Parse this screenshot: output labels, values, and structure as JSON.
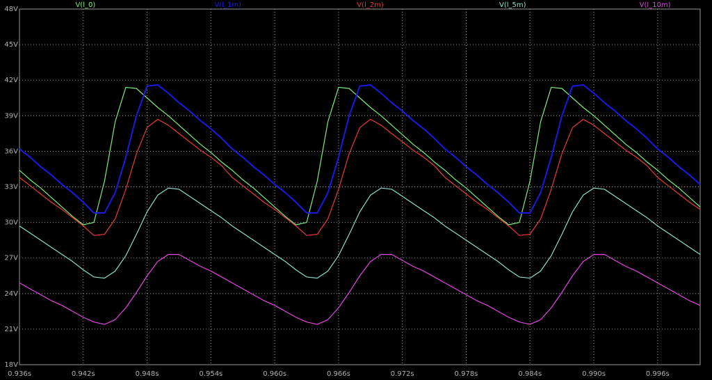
{
  "chart_data": {
    "type": "line",
    "x": [
      0.936,
      0.937,
      0.938,
      0.939,
      0.94,
      0.941,
      0.942,
      0.943,
      0.944,
      0.945,
      0.946,
      0.947,
      0.948,
      0.949,
      0.95,
      0.951,
      0.952,
      0.953,
      0.954,
      0.955,
      0.956,
      0.957,
      0.958,
      0.959,
      0.96,
      0.961,
      0.962,
      0.963,
      0.964,
      0.965,
      0.966,
      0.967,
      0.968,
      0.969,
      0.97,
      0.971,
      0.972,
      0.973,
      0.974,
      0.975,
      0.976,
      0.977,
      0.978,
      0.979,
      0.98,
      0.981,
      0.982,
      0.983,
      0.984,
      0.985,
      0.986,
      0.987,
      0.988,
      0.989,
      0.99,
      0.991,
      0.992,
      0.993,
      0.994,
      0.995,
      0.996,
      0.997,
      0.998,
      0.999,
      1.0
    ],
    "series": [
      {
        "name": "V(l_0)",
        "color": "#7cf07c",
        "values": [
          34.4,
          33.6,
          32.9,
          32.1,
          31.3,
          30.5,
          29.8,
          30.0,
          33.5,
          38.5,
          41.4,
          41.3,
          40.5,
          39.7,
          39.0,
          38.2,
          37.4,
          36.6,
          35.9,
          35.1,
          34.4,
          33.6,
          32.9,
          32.1,
          31.3,
          30.5,
          29.8,
          30.0,
          33.5,
          38.5,
          41.4,
          41.3,
          40.5,
          39.7,
          39.0,
          38.2,
          37.4,
          36.6,
          35.9,
          35.1,
          34.4,
          33.6,
          32.9,
          32.1,
          31.3,
          30.5,
          29.8,
          30.0,
          33.5,
          38.5,
          41.4,
          41.3,
          40.5,
          39.7,
          39.0,
          38.2,
          37.4,
          36.6,
          35.9,
          35.1,
          34.4,
          33.6,
          32.9,
          32.1,
          31.3
        ]
      },
      {
        "name": "V(l_1m)",
        "color": "#1a1ae0",
        "values": [
          36.2,
          35.5,
          34.7,
          34.0,
          33.2,
          32.5,
          31.7,
          30.8,
          30.8,
          32.5,
          35.5,
          39.0,
          41.5,
          41.6,
          40.9,
          40.1,
          39.4,
          38.6,
          37.9,
          37.1,
          36.2,
          35.5,
          34.7,
          34.0,
          33.2,
          32.5,
          31.7,
          30.8,
          30.8,
          32.5,
          35.5,
          39.0,
          41.5,
          41.6,
          40.9,
          40.1,
          39.4,
          38.6,
          37.9,
          37.1,
          36.2,
          35.5,
          34.7,
          34.0,
          33.2,
          32.5,
          31.7,
          30.8,
          30.8,
          32.5,
          35.5,
          39.0,
          41.5,
          41.6,
          40.9,
          40.1,
          39.4,
          38.6,
          37.9,
          37.1,
          36.2,
          35.5,
          34.7,
          34.0,
          33.2
        ]
      },
      {
        "name": "V(l_2m)",
        "color": "#e83a3a",
        "values": [
          33.8,
          33.1,
          32.4,
          31.7,
          31.1,
          30.4,
          29.7,
          28.9,
          29.0,
          30.3,
          32.8,
          35.8,
          38.0,
          38.7,
          38.2,
          37.5,
          36.8,
          36.1,
          35.5,
          34.8,
          33.8,
          33.1,
          32.4,
          31.7,
          31.1,
          30.4,
          29.7,
          28.9,
          29.0,
          30.3,
          32.8,
          35.8,
          38.0,
          38.7,
          38.2,
          37.5,
          36.8,
          36.1,
          35.5,
          34.8,
          33.8,
          33.1,
          32.4,
          31.7,
          31.1,
          30.4,
          29.7,
          28.9,
          29.0,
          30.3,
          32.8,
          35.8,
          38.0,
          38.7,
          38.2,
          37.5,
          36.8,
          36.1,
          35.5,
          34.8,
          33.8,
          33.1,
          32.4,
          31.7,
          31.1
        ]
      },
      {
        "name": "V(l_5m)",
        "color": "#8fe0d0",
        "values": [
          29.7,
          29.1,
          28.5,
          27.9,
          27.3,
          26.7,
          26.0,
          25.4,
          25.3,
          25.9,
          27.2,
          29.0,
          30.9,
          32.3,
          32.9,
          32.8,
          32.2,
          31.6,
          31.0,
          30.4,
          29.7,
          29.1,
          28.5,
          27.9,
          27.3,
          26.7,
          26.0,
          25.4,
          25.3,
          25.9,
          27.2,
          29.0,
          30.9,
          32.3,
          32.9,
          32.8,
          32.2,
          31.6,
          31.0,
          30.4,
          29.7,
          29.1,
          28.5,
          27.9,
          27.3,
          26.7,
          26.0,
          25.4,
          25.3,
          25.9,
          27.2,
          29.0,
          30.9,
          32.3,
          32.9,
          32.8,
          32.2,
          31.6,
          31.0,
          30.4,
          29.7,
          29.1,
          28.5,
          27.9,
          27.3
        ]
      },
      {
        "name": "V(l_10m)",
        "color": "#e445e4",
        "values": [
          24.9,
          24.4,
          23.9,
          23.4,
          23.0,
          22.5,
          22.0,
          21.6,
          21.4,
          21.8,
          22.8,
          24.1,
          25.5,
          26.7,
          27.3,
          27.3,
          26.8,
          26.3,
          25.9,
          25.4,
          24.9,
          24.4,
          23.9,
          23.4,
          23.0,
          22.5,
          22.0,
          21.6,
          21.4,
          21.8,
          22.8,
          24.1,
          25.5,
          26.7,
          27.3,
          27.3,
          26.8,
          26.3,
          25.9,
          25.4,
          24.9,
          24.4,
          23.9,
          23.4,
          23.0,
          22.5,
          22.0,
          21.6,
          21.4,
          21.8,
          22.8,
          24.1,
          25.5,
          26.7,
          27.3,
          27.3,
          26.8,
          26.3,
          25.9,
          25.4,
          24.9,
          24.4,
          23.9,
          23.4,
          23.0
        ]
      }
    ],
    "xlim": [
      0.936,
      1.0
    ],
    "xticks": [
      {
        "value": 0.936,
        "label": "0.936s"
      },
      {
        "value": 0.942,
        "label": "0.942s"
      },
      {
        "value": 0.948,
        "label": "0.948s"
      },
      {
        "value": 0.954,
        "label": "0.954s"
      },
      {
        "value": 0.96,
        "label": "0.960s"
      },
      {
        "value": 0.966,
        "label": "0.966s"
      },
      {
        "value": 0.972,
        "label": "0.972s"
      },
      {
        "value": 0.978,
        "label": "0.978s"
      },
      {
        "value": 0.984,
        "label": "0.984s"
      },
      {
        "value": 0.99,
        "label": "0.990s"
      },
      {
        "value": 0.996,
        "label": "0.996s"
      }
    ],
    "ylim": [
      18,
      48
    ],
    "yticks": [
      {
        "value": 18,
        "label": "18V"
      },
      {
        "value": 21,
        "label": "21V"
      },
      {
        "value": 24,
        "label": "24V"
      },
      {
        "value": 27,
        "label": "27V"
      },
      {
        "value": 30,
        "label": "30V"
      },
      {
        "value": 33,
        "label": "33V"
      },
      {
        "value": 36,
        "label": "36V"
      },
      {
        "value": 39,
        "label": "39V"
      },
      {
        "value": 42,
        "label": "42V"
      },
      {
        "value": 45,
        "label": "45V"
      },
      {
        "value": 48,
        "label": "48V"
      }
    ],
    "grid": true
  }
}
